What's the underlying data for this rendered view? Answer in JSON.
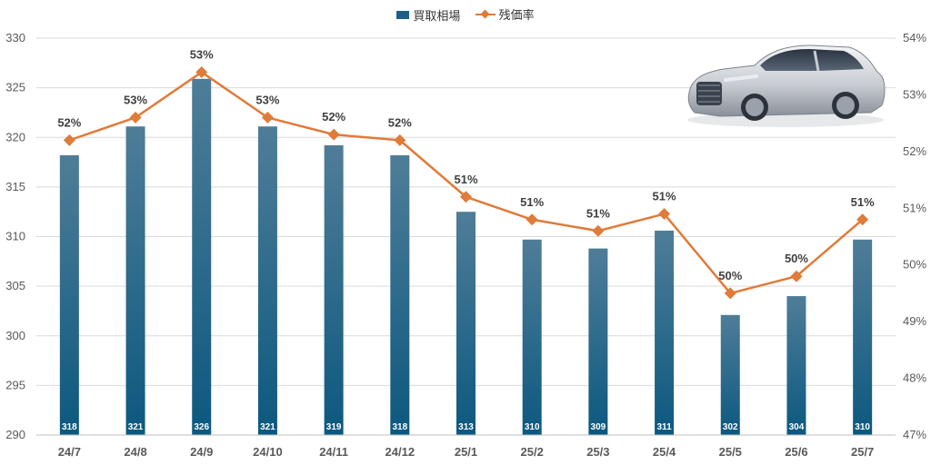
{
  "chart_data": {
    "type": "bar+line",
    "categories": [
      "24/7",
      "24/8",
      "24/9",
      "24/10",
      "24/11",
      "24/12",
      "25/1",
      "25/2",
      "25/3",
      "25/4",
      "25/5",
      "25/6",
      "25/7"
    ],
    "series": [
      {
        "name": "買取相場",
        "kind": "bar",
        "axis": "left",
        "values": [
          318.2,
          321.1,
          325.9,
          321.1,
          319.2,
          318.2,
          312.5,
          309.7,
          308.8,
          310.6,
          302.1,
          304.0,
          309.7
        ],
        "labels": [
          "318",
          "321",
          "326",
          "321",
          "319",
          "318",
          "313",
          "310",
          "309",
          "311",
          "302",
          "304",
          "310"
        ]
      },
      {
        "name": "残価率",
        "kind": "line",
        "axis": "right",
        "values": [
          52.2,
          52.6,
          53.4,
          52.6,
          52.3,
          52.2,
          51.2,
          50.8,
          50.6,
          50.9,
          49.5,
          49.8,
          50.8
        ],
        "labels": [
          "52%",
          "53%",
          "53%",
          "53%",
          "52%",
          "52%",
          "51%",
          "51%",
          "51%",
          "51%",
          "50%",
          "50%",
          "51%"
        ]
      }
    ],
    "y_left": {
      "min": 290,
      "max": 330,
      "ticks": [
        "290",
        "295",
        "300",
        "305",
        "310",
        "315",
        "320",
        "325",
        "330"
      ]
    },
    "y_right": {
      "min": 47,
      "max": 54,
      "ticks": [
        "47%",
        "48%",
        "49%",
        "50%",
        "51%",
        "52%",
        "53%",
        "54%"
      ]
    },
    "legend": [
      "買取相場",
      "残価率"
    ],
    "legend_position": "top-center",
    "colors": {
      "bar_top": "#4f7d98",
      "bar_bottom": "#0c587f",
      "line": "#e07b39",
      "grid": "#d9d9d9",
      "axis_text": "#595959"
    }
  },
  "image": {
    "icon": "car-image-icon"
  }
}
